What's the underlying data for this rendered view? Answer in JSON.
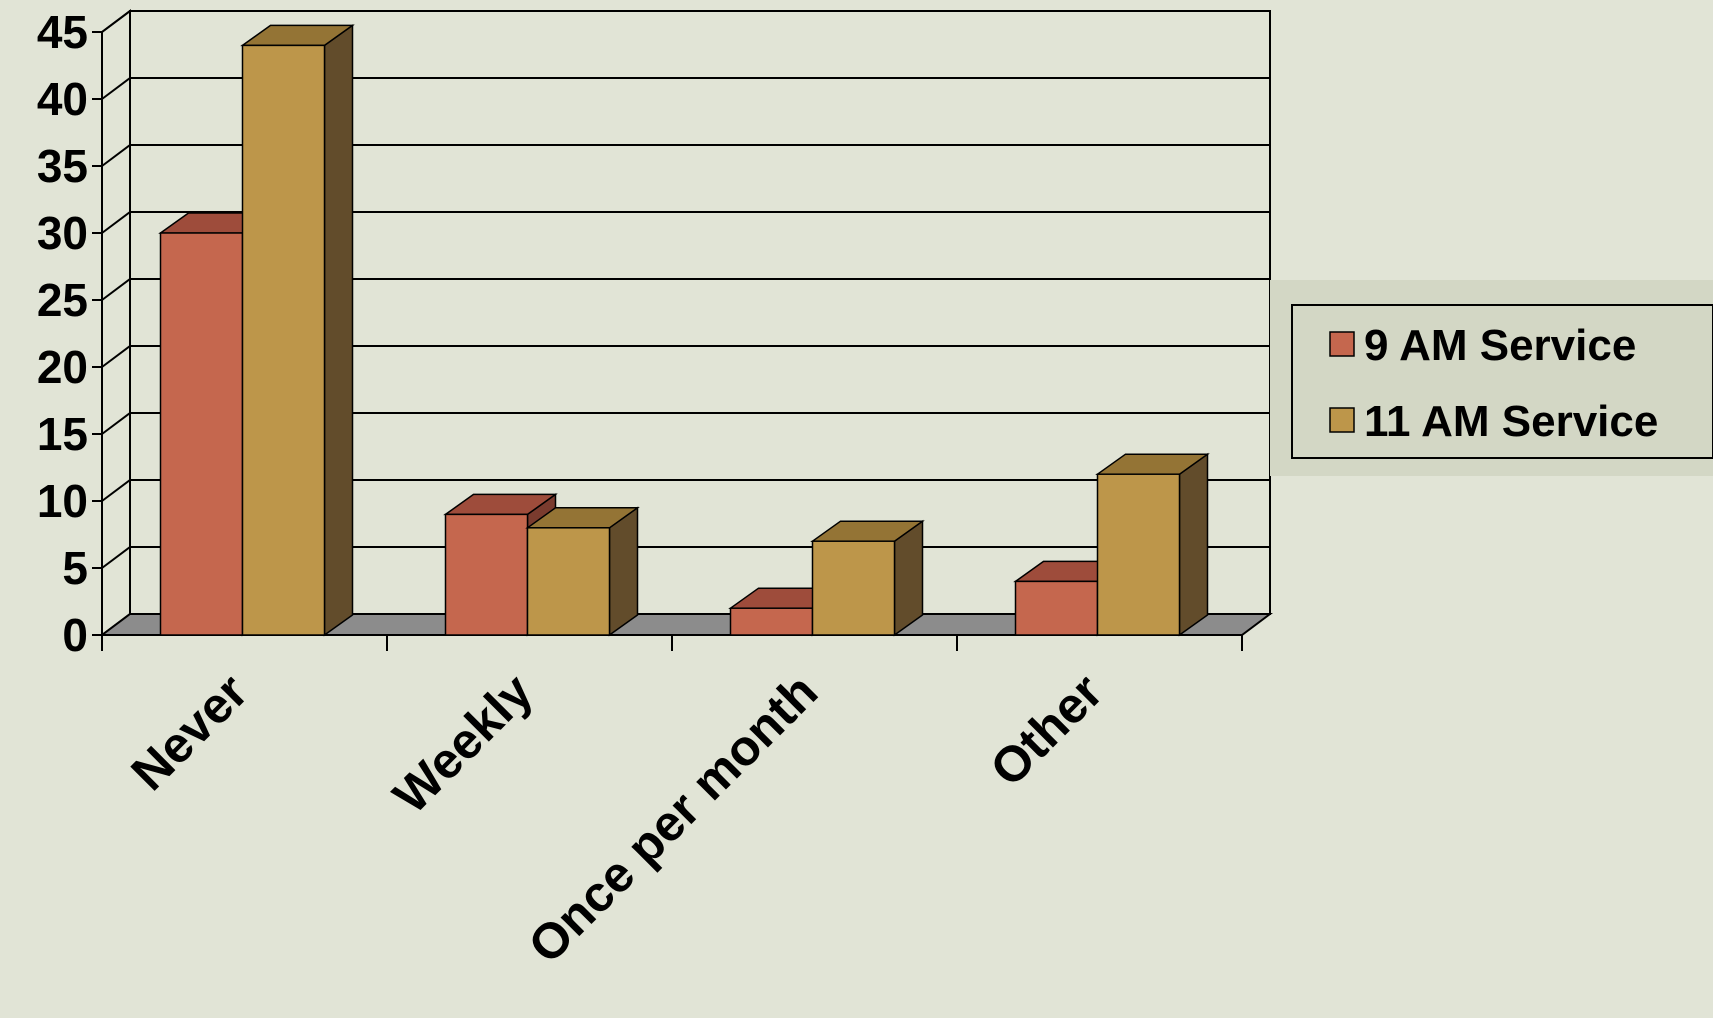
{
  "chart_data": {
    "type": "bar",
    "categories": [
      "Never",
      "Weekly",
      "Once per month",
      "Other"
    ],
    "series": [
      {
        "name": "9 AM Service",
        "values": [
          30,
          9,
          2,
          4
        ]
      },
      {
        "name": "11 AM Service",
        "values": [
          44,
          8,
          7,
          12
        ]
      }
    ],
    "ylim": [
      0,
      45
    ],
    "yticks": [
      0,
      5,
      10,
      15,
      20,
      25,
      30,
      35,
      40,
      45
    ],
    "grid": true,
    "legend": "right",
    "colors": {
      "series_front": [
        "#c5674e",
        "#bd964a"
      ],
      "series_top": [
        "#9e4c3b",
        "#947435"
      ],
      "series_side": [
        "#7a3b2e",
        "#624c2b"
      ],
      "floor": "#8c8c8c",
      "background": "#e1e4d6",
      "legend_band": "#d3d7c5"
    }
  }
}
